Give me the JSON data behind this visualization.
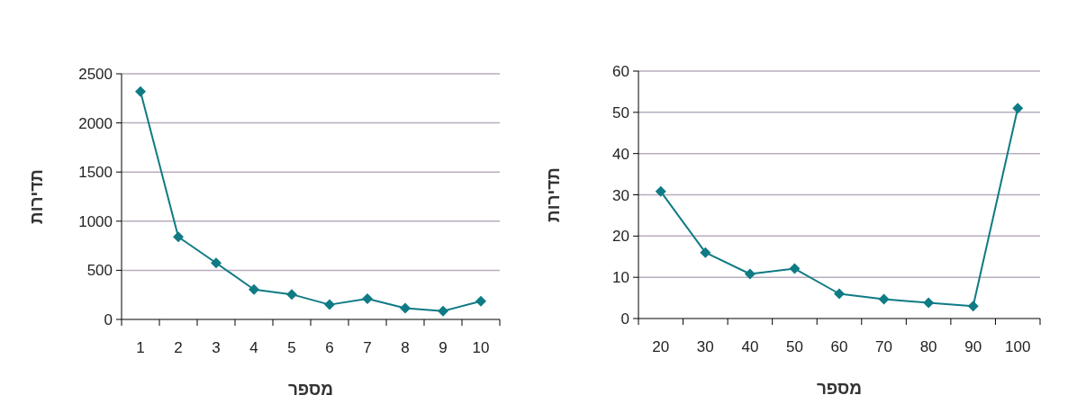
{
  "chart_data": [
    {
      "type": "line",
      "xlabel": "מספר",
      "ylabel": "תדירות",
      "categories": [
        "1",
        "2",
        "3",
        "4",
        "5",
        "6",
        "7",
        "8",
        "9",
        "10"
      ],
      "series": [
        {
          "color": "#0f7b84",
          "values": [
            2320,
            840,
            575,
            305,
            255,
            150,
            210,
            115,
            85,
            185
          ]
        }
      ],
      "ylim": [
        0,
        2500
      ],
      "yticks": [
        0,
        500,
        1000,
        1500,
        2000,
        2500
      ],
      "grid": "y",
      "marker": "diamond"
    },
    {
      "type": "line",
      "xlabel": "מספר",
      "ylabel": "תדירות",
      "categories": [
        "20",
        "30",
        "40",
        "50",
        "60",
        "70",
        "80",
        "90",
        "100"
      ],
      "series": [
        {
          "color": "#0f7b84",
          "values": [
            30.8,
            16,
            10.8,
            12.1,
            6,
            4.7,
            3.8,
            3,
            51
          ]
        }
      ],
      "ylim": [
        0,
        60
      ],
      "yticks": [
        0,
        10,
        20,
        30,
        40,
        50,
        60
      ],
      "grid": "y",
      "marker": "diamond"
    }
  ]
}
